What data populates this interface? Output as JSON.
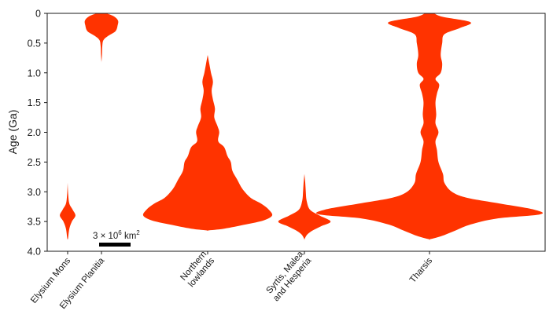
{
  "chart_data": {
    "type": "violin",
    "ylabel": "Age (Ga)",
    "yaxis_inverted": true,
    "ylim": [
      0,
      4.0
    ],
    "yticks": [
      "0",
      "0.5",
      "1.0",
      "1.5",
      "2.0",
      "2.5",
      "3.0",
      "3.5",
      "4.0"
    ],
    "ytick_values": [
      0,
      0.5,
      1.0,
      1.5,
      2.0,
      2.5,
      3.0,
      3.5,
      4.0
    ],
    "fill_color": "#ff3300",
    "scale_bar": {
      "label_prefix": "3 × 10",
      "label_exp": "6",
      "label_suffix": " km",
      "label_unit_exp": "2",
      "area_km2": 3000000
    },
    "series": [
      {
        "name": "Elysium Mons",
        "label_lines": [
          "Elysium Mons"
        ],
        "profile": [
          [
            2.85,
            0
          ],
          [
            3.05,
            0.04
          ],
          [
            3.2,
            0.12
          ],
          [
            3.3,
            0.35
          ],
          [
            3.4,
            0.55
          ],
          [
            3.5,
            0.3
          ],
          [
            3.62,
            0.12
          ],
          [
            3.78,
            0.03
          ],
          [
            3.8,
            0
          ]
        ]
      },
      {
        "name": "Elysium Planitia",
        "label_lines": [
          "Elysium Planitia"
        ],
        "profile": [
          [
            0,
            0.3
          ],
          [
            0.05,
            0.75
          ],
          [
            0.12,
            1.0
          ],
          [
            0.2,
            0.98
          ],
          [
            0.3,
            0.85
          ],
          [
            0.38,
            0.4
          ],
          [
            0.45,
            0.12
          ],
          [
            0.55,
            0.05
          ],
          [
            0.7,
            0.03
          ],
          [
            0.82,
            0
          ]
        ]
      },
      {
        "name": "Northern lowlands",
        "label_lines": [
          "Northern",
          "lowlands"
        ],
        "profile": [
          [
            0.7,
            0
          ],
          [
            0.85,
            0.05
          ],
          [
            1.0,
            0.1
          ],
          [
            1.15,
            0.16
          ],
          [
            1.3,
            0.12
          ],
          [
            1.45,
            0.16
          ],
          [
            1.6,
            0.22
          ],
          [
            1.75,
            0.2
          ],
          [
            1.9,
            0.3
          ],
          [
            2.0,
            0.35
          ],
          [
            2.15,
            0.32
          ],
          [
            2.25,
            0.5
          ],
          [
            2.4,
            0.6
          ],
          [
            2.5,
            0.7
          ],
          [
            2.65,
            0.75
          ],
          [
            2.8,
            0.9
          ],
          [
            2.95,
            1.05
          ],
          [
            3.1,
            1.3
          ],
          [
            3.2,
            1.62
          ],
          [
            3.3,
            1.85
          ],
          [
            3.4,
            1.95
          ],
          [
            3.48,
            1.7
          ],
          [
            3.55,
            1.15
          ],
          [
            3.62,
            0.5
          ],
          [
            3.65,
            0
          ]
        ]
      },
      {
        "name": "Syrtis, Malea and Hesperia",
        "label_lines": [
          "Syrtis, Malea",
          "and Hesperia"
        ],
        "profile": [
          [
            2.7,
            0
          ],
          [
            2.85,
            0.03
          ],
          [
            3.0,
            0.05
          ],
          [
            3.15,
            0.08
          ],
          [
            3.3,
            0.2
          ],
          [
            3.4,
            0.55
          ],
          [
            3.5,
            0.95
          ],
          [
            3.58,
            0.6
          ],
          [
            3.65,
            0.3
          ],
          [
            3.72,
            0.1
          ],
          [
            3.8,
            0
          ]
        ]
      },
      {
        "name": "Tharsis",
        "label_lines": [
          "Tharsis"
        ],
        "profile": [
          [
            0,
            0.06
          ],
          [
            0.06,
            0.18
          ],
          [
            0.15,
            0.55
          ],
          [
            0.25,
            0.4
          ],
          [
            0.35,
            0.2
          ],
          [
            0.5,
            0.17
          ],
          [
            0.7,
            0.15
          ],
          [
            0.85,
            0.17
          ],
          [
            1.0,
            0.15
          ],
          [
            1.1,
            0.08
          ],
          [
            1.2,
            0.13
          ],
          [
            1.35,
            0.1
          ],
          [
            1.5,
            0.08
          ],
          [
            1.7,
            0.09
          ],
          [
            1.85,
            0.08
          ],
          [
            2.0,
            0.12
          ],
          [
            2.15,
            0.08
          ],
          [
            2.3,
            0.1
          ],
          [
            2.5,
            0.12
          ],
          [
            2.7,
            0.18
          ],
          [
            2.85,
            0.2
          ],
          [
            3.0,
            0.3
          ],
          [
            3.1,
            0.5
          ],
          [
            3.2,
            0.95
          ],
          [
            3.3,
            1.4
          ],
          [
            3.38,
            1.48
          ],
          [
            3.45,
            0.9
          ],
          [
            3.55,
            0.55
          ],
          [
            3.65,
            0.35
          ],
          [
            3.75,
            0.15
          ],
          [
            3.8,
            0
          ]
        ]
      }
    ]
  }
}
